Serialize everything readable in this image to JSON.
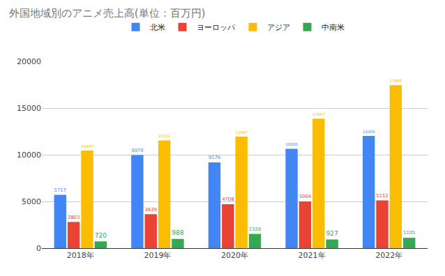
{
  "chart_data": {
    "type": "bar",
    "title": "外国地域別のアニメ売上高(単位：百万円)",
    "categories": [
      "2018年",
      "2019年",
      "2020年",
      "2021年",
      "2022年"
    ],
    "series": [
      {
        "name": "北米",
        "color": "#4285f4",
        "values": [
          5717,
          9970,
          9176,
          10626,
          12008
        ]
      },
      {
        "name": "ヨーロッパ",
        "color": "#ea4335",
        "values": [
          2803,
          3639,
          4708,
          5004,
          5112
        ]
      },
      {
        "name": "アジア",
        "color": "#fbbc04",
        "values": [
          10445,
          11522,
          11947,
          13863,
          17448
        ]
      },
      {
        "name": "中南米",
        "color": "#34a853",
        "values": [
          720,
          988,
          1526,
          927,
          1105
        ]
      }
    ],
    "ylim": [
      0,
      20000
    ],
    "yticks": [
      0,
      5000,
      10000,
      15000,
      20000
    ],
    "grid": true,
    "legend": "top",
    "data_labels": true
  }
}
